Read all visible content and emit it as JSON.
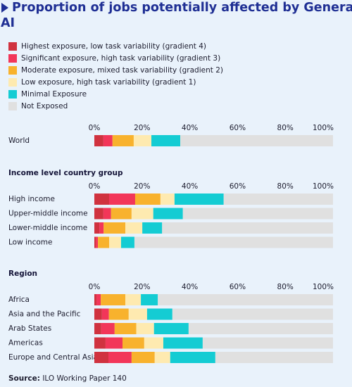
{
  "title": "Proportion of jobs potentially affected by Generative AI",
  "source_label": "Source:",
  "source": "ILO Working Paper 140",
  "chart_data": {
    "type": "bar",
    "orientation": "horizontal",
    "stacked": true,
    "groups": [
      {
        "categories": [
          "World"
        ]
      },
      {
        "title": "Income level country group",
        "categories": [
          "High income",
          "Upper-middle income",
          "Lower-middle income",
          "Low income"
        ]
      },
      {
        "title": "Region",
        "categories": [
          "Africa",
          "Asia and the Pacific",
          "Arab States",
          "Americas",
          "Europe and Central Asia"
        ]
      }
    ],
    "xlim": [
      0,
      100
    ],
    "xticks": [
      {
        "value": 0,
        "label": "0%"
      },
      {
        "value": 20,
        "label": "20%"
      },
      {
        "value": 40,
        "label": "40%"
      },
      {
        "value": 60,
        "label": "60%"
      },
      {
        "value": 80,
        "label": "80%"
      },
      {
        "value": 100,
        "label": "100%"
      }
    ],
    "series": [
      {
        "name": "Highest exposure, low task variability (gradient 4)",
        "color": "#d0323f",
        "values": [
          3.8,
          6.2,
          3.8,
          2.1,
          0.6,
          0.9,
          3.2,
          2.9,
          4.7,
          5.9
        ]
      },
      {
        "name": "Significant exposure, high task variability (gradient 3)",
        "color": "#f23659",
        "values": [
          3.8,
          10.9,
          3.2,
          1.8,
          0.9,
          1.8,
          2.9,
          5.6,
          7.1,
          9.7
        ]
      },
      {
        "name": "Moderate exposure, mixed task variability (gradient 2)",
        "color": "#f8b22d",
        "values": [
          8.9,
          10.6,
          8.6,
          9.1,
          4.7,
          10.3,
          8.3,
          9.1,
          9.1,
          9.7
        ]
      },
      {
        "name": "Low exposure, high task variability (gradient 1)",
        "color": "#feeab0",
        "values": [
          7.4,
          5.9,
          9.1,
          7.1,
          5.0,
          6.5,
          7.7,
          7.4,
          8.0,
          6.5
        ]
      },
      {
        "name": "Minimal Exposure",
        "color": "#14ccd3",
        "values": [
          12.1,
          20.6,
          12.4,
          8.3,
          5.6,
          7.1,
          10.6,
          14.5,
          16.5,
          18.9
        ]
      },
      {
        "name": "Not Exposed",
        "color": "#e0e0e0",
        "values": [
          64.0,
          45.8,
          62.9,
          71.6,
          83.2,
          73.4,
          67.3,
          60.5,
          54.6,
          49.3
        ]
      }
    ],
    "legend": "top-left"
  }
}
